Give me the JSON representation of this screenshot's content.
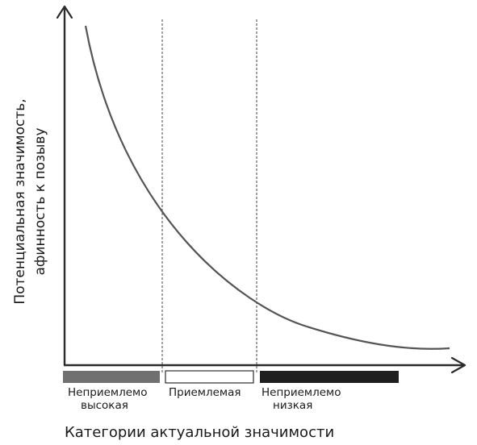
{
  "y_axis_label": {
    "line1": "Потенциальная значимость,",
    "line2": "афинность к позыву"
  },
  "x_axis_label": "Категории актуальной значимости",
  "categories": [
    {
      "label_line1": "Неприемлемо",
      "label_line2": "высокая",
      "color": "#707070"
    },
    {
      "label_line1": "Приемлемая",
      "label_line2": "",
      "color": "#ffffff"
    },
    {
      "label_line1": "Неприемлемо",
      "label_line2": "низкая",
      "color": "#1e1e1e"
    }
  ]
}
